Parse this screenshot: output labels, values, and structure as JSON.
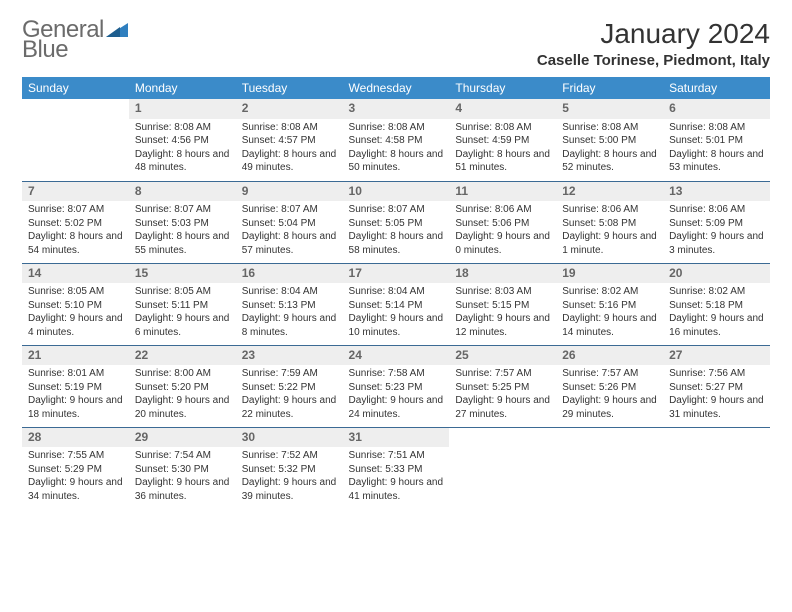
{
  "colors": {
    "header_bg": "#3b8bc9",
    "header_text": "#ffffff",
    "daynum_bg": "#eeeeee",
    "daynum_text": "#666666",
    "row_border": "#3b6a94",
    "logo_gray": "#6b6b6b",
    "logo_blue": "#2f7fbf",
    "body_text": "#333333",
    "page_bg": "#ffffff"
  },
  "fonts": {
    "family": "Arial, Helvetica, sans-serif",
    "month_title_size": 28,
    "location_size": 15,
    "weekday_size": 12,
    "daynum_size": 12,
    "cell_text_size": 10
  },
  "logo": {
    "line1": "General",
    "line2": "Blue"
  },
  "title": "January 2024",
  "location": "Caselle Torinese, Piedmont, Italy",
  "weekdays": [
    "Sunday",
    "Monday",
    "Tuesday",
    "Wednesday",
    "Thursday",
    "Friday",
    "Saturday"
  ],
  "labels": {
    "sunrise": "Sunrise:",
    "sunset": "Sunset:",
    "daylight": "Daylight:"
  },
  "grid": {
    "rows": 6,
    "cols": 7,
    "first_weekday_index": 1,
    "days_in_month": 31
  },
  "days": [
    {
      "n": 1,
      "sunrise": "8:08 AM",
      "sunset": "4:56 PM",
      "daylight": "8 hours and 48 minutes."
    },
    {
      "n": 2,
      "sunrise": "8:08 AM",
      "sunset": "4:57 PM",
      "daylight": "8 hours and 49 minutes."
    },
    {
      "n": 3,
      "sunrise": "8:08 AM",
      "sunset": "4:58 PM",
      "daylight": "8 hours and 50 minutes."
    },
    {
      "n": 4,
      "sunrise": "8:08 AM",
      "sunset": "4:59 PM",
      "daylight": "8 hours and 51 minutes."
    },
    {
      "n": 5,
      "sunrise": "8:08 AM",
      "sunset": "5:00 PM",
      "daylight": "8 hours and 52 minutes."
    },
    {
      "n": 6,
      "sunrise": "8:08 AM",
      "sunset": "5:01 PM",
      "daylight": "8 hours and 53 minutes."
    },
    {
      "n": 7,
      "sunrise": "8:07 AM",
      "sunset": "5:02 PM",
      "daylight": "8 hours and 54 minutes."
    },
    {
      "n": 8,
      "sunrise": "8:07 AM",
      "sunset": "5:03 PM",
      "daylight": "8 hours and 55 minutes."
    },
    {
      "n": 9,
      "sunrise": "8:07 AM",
      "sunset": "5:04 PM",
      "daylight": "8 hours and 57 minutes."
    },
    {
      "n": 10,
      "sunrise": "8:07 AM",
      "sunset": "5:05 PM",
      "daylight": "8 hours and 58 minutes."
    },
    {
      "n": 11,
      "sunrise": "8:06 AM",
      "sunset": "5:06 PM",
      "daylight": "9 hours and 0 minutes."
    },
    {
      "n": 12,
      "sunrise": "8:06 AM",
      "sunset": "5:08 PM",
      "daylight": "9 hours and 1 minute."
    },
    {
      "n": 13,
      "sunrise": "8:06 AM",
      "sunset": "5:09 PM",
      "daylight": "9 hours and 3 minutes."
    },
    {
      "n": 14,
      "sunrise": "8:05 AM",
      "sunset": "5:10 PM",
      "daylight": "9 hours and 4 minutes."
    },
    {
      "n": 15,
      "sunrise": "8:05 AM",
      "sunset": "5:11 PM",
      "daylight": "9 hours and 6 minutes."
    },
    {
      "n": 16,
      "sunrise": "8:04 AM",
      "sunset": "5:13 PM",
      "daylight": "9 hours and 8 minutes."
    },
    {
      "n": 17,
      "sunrise": "8:04 AM",
      "sunset": "5:14 PM",
      "daylight": "9 hours and 10 minutes."
    },
    {
      "n": 18,
      "sunrise": "8:03 AM",
      "sunset": "5:15 PM",
      "daylight": "9 hours and 12 minutes."
    },
    {
      "n": 19,
      "sunrise": "8:02 AM",
      "sunset": "5:16 PM",
      "daylight": "9 hours and 14 minutes."
    },
    {
      "n": 20,
      "sunrise": "8:02 AM",
      "sunset": "5:18 PM",
      "daylight": "9 hours and 16 minutes."
    },
    {
      "n": 21,
      "sunrise": "8:01 AM",
      "sunset": "5:19 PM",
      "daylight": "9 hours and 18 minutes."
    },
    {
      "n": 22,
      "sunrise": "8:00 AM",
      "sunset": "5:20 PM",
      "daylight": "9 hours and 20 minutes."
    },
    {
      "n": 23,
      "sunrise": "7:59 AM",
      "sunset": "5:22 PM",
      "daylight": "9 hours and 22 minutes."
    },
    {
      "n": 24,
      "sunrise": "7:58 AM",
      "sunset": "5:23 PM",
      "daylight": "9 hours and 24 minutes."
    },
    {
      "n": 25,
      "sunrise": "7:57 AM",
      "sunset": "5:25 PM",
      "daylight": "9 hours and 27 minutes."
    },
    {
      "n": 26,
      "sunrise": "7:57 AM",
      "sunset": "5:26 PM",
      "daylight": "9 hours and 29 minutes."
    },
    {
      "n": 27,
      "sunrise": "7:56 AM",
      "sunset": "5:27 PM",
      "daylight": "9 hours and 31 minutes."
    },
    {
      "n": 28,
      "sunrise": "7:55 AM",
      "sunset": "5:29 PM",
      "daylight": "9 hours and 34 minutes."
    },
    {
      "n": 29,
      "sunrise": "7:54 AM",
      "sunset": "5:30 PM",
      "daylight": "9 hours and 36 minutes."
    },
    {
      "n": 30,
      "sunrise": "7:52 AM",
      "sunset": "5:32 PM",
      "daylight": "9 hours and 39 minutes."
    },
    {
      "n": 31,
      "sunrise": "7:51 AM",
      "sunset": "5:33 PM",
      "daylight": "9 hours and 41 minutes."
    }
  ]
}
